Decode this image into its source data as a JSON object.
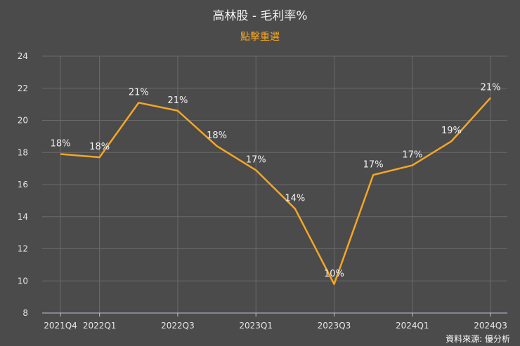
{
  "title": "高林股 - 毛利率%",
  "reselect_label": "點擊重選",
  "source": "資料來源: 優分析",
  "colors": {
    "background": "#4b4b4b",
    "line": "#f5a623",
    "grid": "#6a6a6a",
    "axis": "#b9c2d6"
  },
  "chart_data": {
    "type": "line",
    "title": "高林股 - 毛利率%",
    "ylim": [
      8,
      24
    ],
    "yticks": [
      "8",
      "10",
      "12",
      "14",
      "16",
      "18",
      "20",
      "22",
      "24"
    ],
    "xticks": [
      "2021Q4",
      "2022Q1",
      "2022Q3",
      "2023Q1",
      "2023Q3",
      "2024Q1",
      "2024Q3"
    ],
    "categories": [
      "2021Q4",
      "2022Q1",
      "2022Q2",
      "2022Q3",
      "2022Q4",
      "2023Q1",
      "2023Q2",
      "2023Q3",
      "2023Q4",
      "2024Q1",
      "2024Q2",
      "2024Q3"
    ],
    "series": [
      {
        "name": "毛利率%",
        "values": [
          17.9,
          17.7,
          21.1,
          20.6,
          18.4,
          16.9,
          14.5,
          9.8,
          16.6,
          17.2,
          18.7,
          21.4
        ],
        "labels": [
          "18%",
          "18%",
          "21%",
          "21%",
          "18%",
          "17%",
          "14%",
          "10%",
          "17%",
          "17%",
          "19%",
          "21%"
        ]
      }
    ]
  }
}
